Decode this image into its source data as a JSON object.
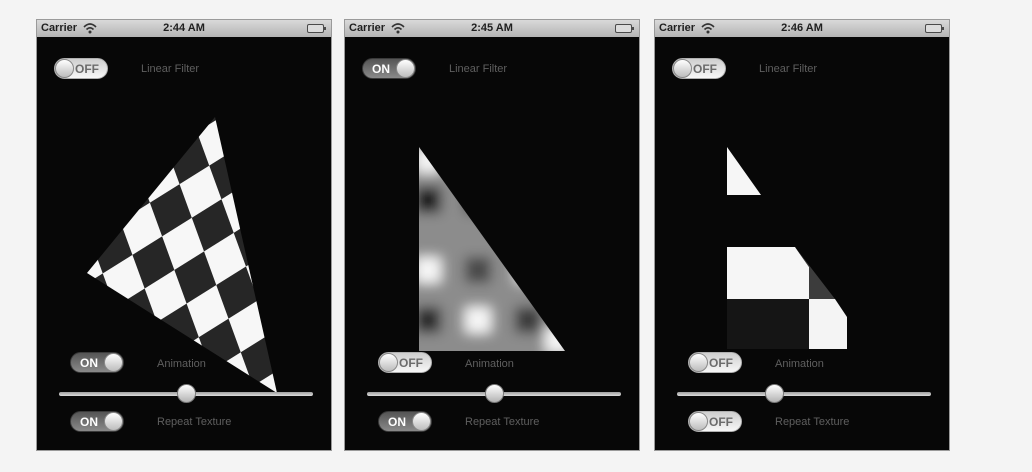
{
  "screens": [
    {
      "status": {
        "carrier": "Carrier",
        "time": "2:44 AM"
      },
      "linear_filter": {
        "state": "OFF",
        "label": "Linear Filter"
      },
      "animation": {
        "state": "ON",
        "label": "Animation"
      },
      "slider": {
        "value": 0.5
      },
      "repeat_texture": {
        "state": "ON",
        "label": "Repeat Texture"
      }
    },
    {
      "status": {
        "carrier": "Carrier",
        "time": "2:45 AM"
      },
      "linear_filter": {
        "state": "ON",
        "label": "Linear Filter"
      },
      "animation": {
        "state": "OFF",
        "label": "Animation"
      },
      "slider": {
        "value": 0.5
      },
      "repeat_texture": {
        "state": "ON",
        "label": "Repeat Texture"
      }
    },
    {
      "status": {
        "carrier": "Carrier",
        "time": "2:46 AM"
      },
      "linear_filter": {
        "state": "OFF",
        "label": "Linear Filter"
      },
      "animation": {
        "state": "OFF",
        "label": "Animation"
      },
      "slider": {
        "value": 0.38
      },
      "repeat_texture": {
        "state": "OFF",
        "label": "Repeat Texture"
      }
    }
  ]
}
